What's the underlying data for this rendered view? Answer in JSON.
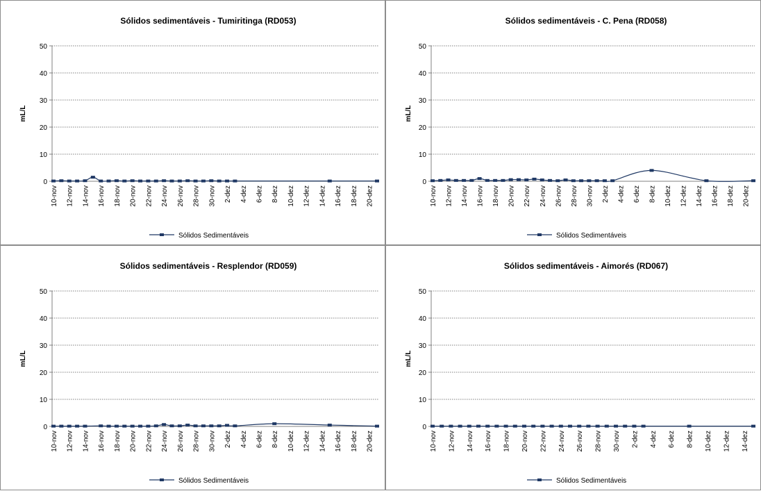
{
  "chart_data": [
    {
      "type": "line",
      "title": "Sólidos sedimentáveis - Tumiritinga (RD053)",
      "ylabel": "mL/L",
      "xlabel": "",
      "ylim": [
        0,
        50
      ],
      "yticks": [
        0,
        10,
        20,
        30,
        40,
        50
      ],
      "grid": true,
      "legend_position": "bottom",
      "xticks": [
        "10-nov",
        "12-nov",
        "14-nov",
        "16-nov",
        "18-nov",
        "20-nov",
        "22-nov",
        "24-nov",
        "26-nov",
        "28-nov",
        "30-nov",
        "2-dez",
        "4-dez",
        "6-dez",
        "8-dez",
        "10-dez",
        "12-dez",
        "14-dez",
        "16-dez",
        "18-dez",
        "20-dez"
      ],
      "series": [
        {
          "name": "Sólidos Sedimentáveis",
          "color": "#1f3864",
          "x": [
            "10-nov",
            "11-nov",
            "12-nov",
            "13-nov",
            "14-nov",
            "15-nov",
            "16-nov",
            "17-nov",
            "18-nov",
            "19-nov",
            "20-nov",
            "21-nov",
            "22-nov",
            "23-nov",
            "24-nov",
            "25-nov",
            "26-nov",
            "27-nov",
            "28-nov",
            "29-nov",
            "30-nov",
            "1-dez",
            "2-dez",
            "3-dez",
            "15-dez",
            "21-dez"
          ],
          "values": [
            0.1,
            0.2,
            0.1,
            0.1,
            0.2,
            1.5,
            0.1,
            0.1,
            0.2,
            0.1,
            0.2,
            0.1,
            0.1,
            0.1,
            0.2,
            0.1,
            0.1,
            0.2,
            0.1,
            0.1,
            0.2,
            0.1,
            0.1,
            0.1,
            0.1,
            0.1
          ]
        }
      ]
    },
    {
      "type": "line",
      "title": "Sólidos sedimentáveis - C. Pena (RD058)",
      "ylabel": "mL/L",
      "xlabel": "",
      "ylim": [
        0,
        50
      ],
      "yticks": [
        0,
        10,
        20,
        30,
        40,
        50
      ],
      "grid": true,
      "legend_position": "bottom",
      "xticks": [
        "10-nov",
        "12-nov",
        "14-nov",
        "16-nov",
        "18-nov",
        "20-nov",
        "22-nov",
        "24-nov",
        "26-nov",
        "28-nov",
        "30-nov",
        "2-dez",
        "4-dez",
        "6-dez",
        "8-dez",
        "10-dez",
        "12-dez",
        "14-dez",
        "16-dez",
        "18-dez",
        "20-dez"
      ],
      "series": [
        {
          "name": "Sólidos Sedimentáveis",
          "color": "#1f3864",
          "x": [
            "10-nov",
            "11-nov",
            "12-nov",
            "13-nov",
            "14-nov",
            "15-nov",
            "16-nov",
            "17-nov",
            "18-nov",
            "19-nov",
            "20-nov",
            "21-nov",
            "22-nov",
            "23-nov",
            "24-nov",
            "25-nov",
            "26-nov",
            "27-nov",
            "28-nov",
            "29-nov",
            "30-nov",
            "1-dez",
            "2-dez",
            "3-dez",
            "8-dez",
            "15-dez",
            "21-dez"
          ],
          "values": [
            0.2,
            0.3,
            0.5,
            0.3,
            0.3,
            0.3,
            1.0,
            0.3,
            0.3,
            0.3,
            0.6,
            0.6,
            0.5,
            0.8,
            0.5,
            0.3,
            0.2,
            0.5,
            0.2,
            0.2,
            0.2,
            0.2,
            0.2,
            0.2,
            4.0,
            0.2,
            0.2
          ]
        }
      ]
    },
    {
      "type": "line",
      "title": "Sólidos sedimentáveis - Resplendor (RD059)",
      "ylabel": "mL/L",
      "xlabel": "",
      "ylim": [
        0,
        50
      ],
      "yticks": [
        0,
        10,
        20,
        30,
        40,
        50
      ],
      "grid": true,
      "legend_position": "bottom",
      "xticks": [
        "10-nov",
        "12-nov",
        "14-nov",
        "16-nov",
        "18-nov",
        "20-nov",
        "22-nov",
        "24-nov",
        "26-nov",
        "28-nov",
        "30-nov",
        "2-dez",
        "4-dez",
        "6-dez",
        "8-dez",
        "10-dez",
        "12-dez",
        "14-dez",
        "16-dez",
        "18-dez",
        "20-dez"
      ],
      "series": [
        {
          "name": "Sólidos Sedimentáveis",
          "color": "#1f3864",
          "x": [
            "10-nov",
            "11-nov",
            "12-nov",
            "13-nov",
            "14-nov",
            "16-nov",
            "17-nov",
            "18-nov",
            "19-nov",
            "20-nov",
            "21-nov",
            "22-nov",
            "23-nov",
            "24-nov",
            "25-nov",
            "26-nov",
            "27-nov",
            "28-nov",
            "29-nov",
            "30-nov",
            "1-dez",
            "2-dez",
            "3-dez",
            "8-dez",
            "15-dez",
            "21-dez"
          ],
          "values": [
            0.1,
            0.1,
            0.1,
            0.1,
            0.1,
            0.2,
            0.1,
            0.1,
            0.1,
            0.1,
            0.1,
            0.1,
            0.2,
            0.7,
            0.2,
            0.2,
            0.5,
            0.2,
            0.2,
            0.2,
            0.2,
            0.4,
            0.2,
            1.0,
            0.5,
            0.1
          ]
        }
      ]
    },
    {
      "type": "line",
      "title": "Sólidos sedimentáveis - Aimorés (RD067)",
      "ylabel": "mL/L",
      "xlabel": "",
      "ylim": [
        0,
        50
      ],
      "yticks": [
        0,
        10,
        20,
        30,
        40,
        50
      ],
      "grid": true,
      "legend_position": "bottom",
      "xticks": [
        "10-nov",
        "12-nov",
        "14-nov",
        "16-nov",
        "18-nov",
        "20-nov",
        "22-nov",
        "24-nov",
        "26-nov",
        "28-nov",
        "30-nov",
        "2-dez",
        "4-dez",
        "6-dez",
        "8-dez",
        "10-dez",
        "12-dez",
        "14-dez"
      ],
      "series": [
        {
          "name": "Sólidos Sedimentáveis",
          "color": "#1f3864",
          "x": [
            "10-nov",
            "11-nov",
            "12-nov",
            "13-nov",
            "14-nov",
            "15-nov",
            "16-nov",
            "17-nov",
            "18-nov",
            "19-nov",
            "20-nov",
            "21-nov",
            "22-nov",
            "23-nov",
            "24-nov",
            "25-nov",
            "26-nov",
            "27-nov",
            "28-nov",
            "29-nov",
            "30-nov",
            "1-dez",
            "2-dez",
            "3-dez",
            "8-dez",
            "15-dez"
          ],
          "values": [
            0.1,
            0.1,
            0.1,
            0.1,
            0.1,
            0.1,
            0.1,
            0.1,
            0.1,
            0.1,
            0.1,
            0.1,
            0.1,
            0.1,
            0.1,
            0.1,
            0.1,
            0.1,
            0.1,
            0.1,
            0.1,
            0.1,
            0.1,
            0.1,
            0.1,
            0.1
          ]
        }
      ]
    }
  ]
}
